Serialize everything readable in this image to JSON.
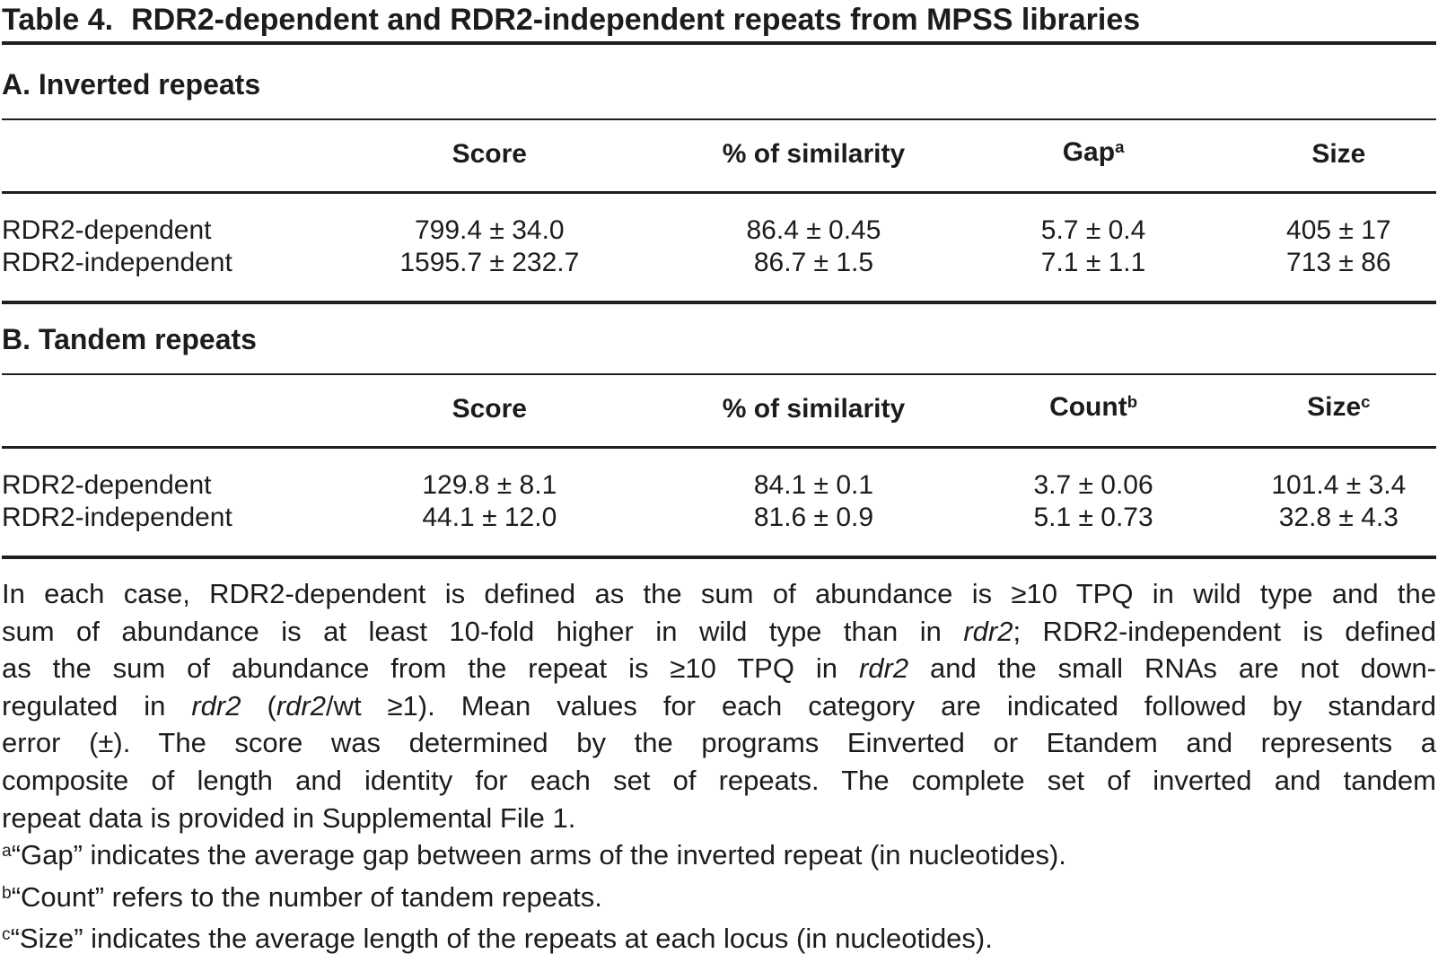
{
  "title": {
    "label": "Table 4.",
    "text": "RDR2-dependent and RDR2-independent repeats from MPSS libraries"
  },
  "sections": [
    {
      "heading": "A. Inverted repeats",
      "columns": [
        [
          {
            "text": "Score"
          }
        ],
        [
          {
            "text": "% of similarity"
          }
        ],
        [
          {
            "text": "Gap"
          },
          {
            "text": "a",
            "sup": true
          }
        ],
        [
          {
            "text": "Size"
          }
        ]
      ],
      "rows": [
        {
          "label": "RDR2-dependent",
          "values": [
            "799.4 ± 34.0",
            "86.4 ± 0.45",
            "5.7 ± 0.4",
            "405 ± 17"
          ]
        },
        {
          "label": "RDR2-independent",
          "values": [
            "1595.7 ± 232.7",
            "86.7 ± 1.5",
            "7.1 ± 1.1",
            "713 ± 86"
          ]
        }
      ]
    },
    {
      "heading": "B. Tandem repeats",
      "columns": [
        [
          {
            "text": "Score"
          }
        ],
        [
          {
            "text": "% of similarity"
          }
        ],
        [
          {
            "text": "Count"
          },
          {
            "text": "b",
            "sup": true
          }
        ],
        [
          {
            "text": "Size"
          },
          {
            "text": "c",
            "sup": true
          }
        ]
      ],
      "rows": [
        {
          "label": "RDR2-dependent",
          "values": [
            "129.8 ± 8.1",
            "84.1 ± 0.1",
            "3.7 ± 0.06",
            "101.4 ± 3.4"
          ]
        },
        {
          "label": "RDR2-independent",
          "values": [
            "44.1 ± 12.0",
            "81.6 ± 0.9",
            "5.1 ± 0.73",
            "32.8 ± 4.3"
          ]
        }
      ]
    }
  ],
  "notes": {
    "lines": [
      [
        {
          "text": "In each case, RDR2-dependent is defined as the sum of abundance is ≥10 TPQ in wild type and the"
        }
      ],
      [
        {
          "text": "sum of abundance is at least 10-fold higher in wild type than in "
        },
        {
          "text": "rdr2",
          "italic": true
        },
        {
          "text": "; RDR2-independent is defined"
        }
      ],
      [
        {
          "text": "as the sum of abundance from the repeat is ≥10 TPQ in "
        },
        {
          "text": "rdr2",
          "italic": true
        },
        {
          "text": " and the small RNAs are not down-"
        }
      ],
      [
        {
          "text": "regulated in "
        },
        {
          "text": "rdr2",
          "italic": true
        },
        {
          "text": " ("
        },
        {
          "text": "rdr2",
          "italic": true
        },
        {
          "text": "/wt ≥1). Mean values for each category are indicated followed by standard"
        }
      ],
      [
        {
          "text": "error (±). The score was determined by the programs Einverted or Etandem and represents a"
        }
      ],
      [
        {
          "text": "composite of length and identity for each set of repeats. The complete set of inverted and tandem"
        }
      ],
      [
        {
          "text": "repeat data is provided in Supplemental File 1."
        }
      ],
      [
        {
          "text": "a",
          "sup": true
        },
        {
          "text": "“Gap” indicates the average gap between arms of the inverted repeat (in nucleotides)."
        }
      ],
      [
        {
          "text": "b",
          "sup": true
        },
        {
          "text": "“Count” refers to the number of tandem repeats."
        }
      ],
      [
        {
          "text": "c",
          "sup": true
        },
        {
          "text": "“Size” indicates the average length of the repeats at each locus (in nucleotides)."
        }
      ]
    ]
  }
}
